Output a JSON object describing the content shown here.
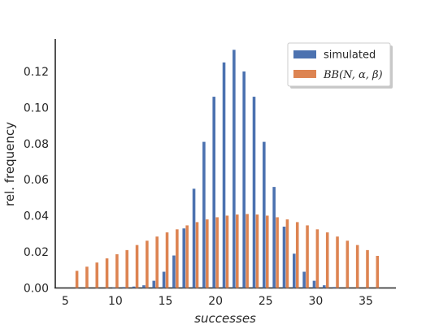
{
  "chart_data": {
    "type": "bar",
    "xlabel": "successes",
    "ylabel": "rel. frequency",
    "xlim": [
      4,
      38
    ],
    "ylim": [
      0,
      0.138
    ],
    "xticks": [
      5,
      10,
      15,
      20,
      25,
      30,
      35
    ],
    "yticks": [
      0.0,
      0.02,
      0.04,
      0.06,
      0.08,
      0.1,
      0.12
    ],
    "ytick_labels": [
      "0.00",
      "0.02",
      "0.04",
      "0.06",
      "0.08",
      "0.10",
      "0.12"
    ],
    "grid": false,
    "legend_position": "top-right",
    "series": [
      {
        "name": "simulated",
        "color": "#4c72b0",
        "x": [
          10,
          11,
          12,
          13,
          14,
          15,
          16,
          17,
          18,
          19,
          20,
          21,
          22,
          23,
          24,
          25,
          26,
          27,
          28,
          29,
          30,
          31,
          32
        ],
        "values": [
          0.0003,
          0.0005,
          0.0008,
          0.0015,
          0.004,
          0.009,
          0.018,
          0.033,
          0.055,
          0.081,
          0.106,
          0.125,
          0.132,
          0.12,
          0.106,
          0.081,
          0.056,
          0.034,
          0.019,
          0.009,
          0.004,
          0.0015,
          0.0005
        ]
      },
      {
        "name": "BB(N, α, β)",
        "color": "#dd8452",
        "x": [
          6,
          7,
          8,
          9,
          10,
          11,
          12,
          13,
          14,
          15,
          16,
          17,
          18,
          19,
          20,
          21,
          22,
          23,
          24,
          25,
          26,
          27,
          28,
          29,
          30,
          31,
          32,
          33,
          34,
          35,
          36
        ],
        "values": [
          0.0095,
          0.0118,
          0.0141,
          0.0164,
          0.0187,
          0.021,
          0.0238,
          0.0262,
          0.0285,
          0.0308,
          0.0325,
          0.0347,
          0.0365,
          0.038,
          0.0392,
          0.0401,
          0.0407,
          0.041,
          0.0407,
          0.0401,
          0.0392,
          0.038,
          0.0365,
          0.0347,
          0.0325,
          0.0308,
          0.0285,
          0.0262,
          0.0238,
          0.021,
          0.0178
        ]
      }
    ]
  },
  "legend": {
    "simulated_label": "simulated",
    "bb_prefix": "BB",
    "bb_args": "(N, α, β)"
  }
}
